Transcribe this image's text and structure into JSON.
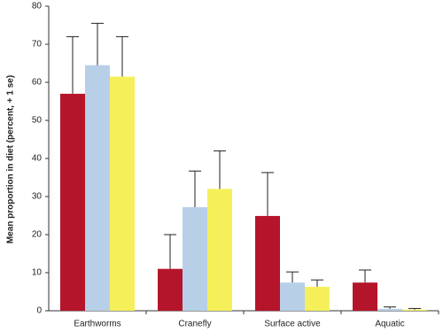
{
  "chart_data": {
    "type": "bar",
    "y_label": "Mean proportion in diet (percent, + 1 se)",
    "categories": [
      "Earthworms",
      "Cranefly",
      "Surface active",
      "Aquatic"
    ],
    "series": [
      {
        "color": "#b5152b",
        "values": [
          57,
          11,
          24.9,
          7.4
        ],
        "errors": [
          15,
          9,
          11.4,
          3.3
        ]
      },
      {
        "color": "#b8cfe8",
        "values": [
          64.5,
          27.2,
          7.4,
          0.5
        ],
        "errors": [
          11,
          9.5,
          2.8,
          0.5
        ]
      },
      {
        "color": "#f5f05a",
        "values": [
          61.5,
          32,
          6.3,
          0.3
        ],
        "errors": [
          10.5,
          10,
          1.8,
          0.3
        ]
      }
    ],
    "ylim": [
      0,
      80
    ],
    "yticks": [
      0,
      10,
      20,
      30,
      40,
      50,
      60,
      70,
      80
    ]
  }
}
